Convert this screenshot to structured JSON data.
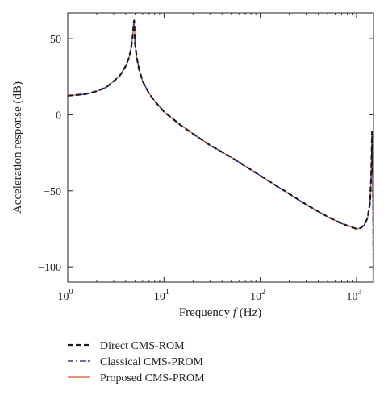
{
  "chart_data": {
    "type": "line",
    "title": "",
    "xlabel": "Frequency",
    "xlabel_var": "f",
    "xlabel_unit": "(Hz)",
    "ylabel": "Acceleration response (dB)",
    "xscale": "log",
    "xlim": [
      1,
      1500
    ],
    "ylim": [
      -110,
      67
    ],
    "grid": false,
    "legend_position": "below",
    "x_ticks": [
      {
        "base": "10",
        "exp": "0",
        "value": 1
      },
      {
        "base": "10",
        "exp": "1",
        "value": 10
      },
      {
        "base": "10",
        "exp": "2",
        "value": 100
      },
      {
        "base": "10",
        "exp": "3",
        "value": 1000
      }
    ],
    "y_ticks": [
      {
        "label": "50",
        "value": 50
      },
      {
        "label": "0",
        "value": 0
      },
      {
        "label": "−50",
        "value": -50
      },
      {
        "label": "−100",
        "value": -100
      }
    ],
    "series": [
      {
        "name": "Direct CMS-ROM",
        "color": "#1a1a1a",
        "dash": "dashed",
        "x": [
          1,
          1.5,
          2,
          2.5,
          3,
          3.5,
          4,
          4.3,
          4.5,
          4.7,
          4.8,
          4.85,
          4.9,
          4.95,
          5,
          5.2,
          5.5,
          6,
          7,
          8,
          10,
          15,
          20,
          30,
          50,
          100,
          200,
          300,
          500,
          700,
          900,
          1000,
          1100,
          1200,
          1300,
          1380,
          1420,
          1450,
          1470
        ],
        "y": [
          12.5,
          13.5,
          15.5,
          18,
          22,
          26,
          32,
          37,
          42,
          50,
          57,
          61,
          62,
          55,
          47,
          38,
          30,
          22,
          14,
          9,
          2,
          -7,
          -12.5,
          -20,
          -28,
          -40,
          -52,
          -59,
          -67,
          -71.5,
          -74,
          -75,
          -74.5,
          -72.5,
          -68,
          -58,
          -40,
          -11,
          -38
        ]
      },
      {
        "name": "Classical CMS-PROM",
        "color": "#3a3a9a",
        "dash": "dashdot",
        "x": [
          1,
          1.5,
          2,
          2.5,
          3,
          3.5,
          4,
          4.3,
          4.5,
          4.7,
          4.8,
          4.85,
          4.9,
          4.95,
          5,
          5.2,
          5.5,
          6,
          7,
          8,
          10,
          15,
          20,
          30,
          50,
          100,
          200,
          300,
          500,
          700,
          900,
          1000,
          1100,
          1200,
          1300,
          1380,
          1420,
          1450,
          1470,
          1490
        ],
        "y": [
          12.5,
          13.5,
          15.5,
          18,
          22,
          26,
          32,
          37,
          42,
          50,
          57,
          61,
          62,
          55,
          47,
          38,
          30,
          22,
          14,
          9,
          2,
          -7,
          -12.5,
          -20,
          -28,
          -40,
          -52,
          -59,
          -67,
          -71.5,
          -74,
          -75,
          -74.5,
          -72.5,
          -68,
          -58,
          -40,
          -11,
          -45,
          -110
        ]
      },
      {
        "name": "Proposed CMS-PROM",
        "color": "#d9532c",
        "dash": "solid",
        "x": [
          1,
          1.5,
          2,
          2.5,
          3,
          3.5,
          4,
          4.3,
          4.5,
          4.7,
          4.8,
          4.85,
          4.9,
          4.95,
          5,
          5.2,
          5.5,
          6,
          7,
          8,
          10,
          15,
          20,
          30,
          50,
          100,
          200,
          300,
          500,
          700,
          900,
          1000,
          1100,
          1200,
          1300,
          1380,
          1420,
          1450,
          1470,
          1480
        ],
        "y": [
          12.5,
          13.5,
          15.5,
          18,
          22,
          26,
          32,
          37,
          42,
          50,
          57,
          61,
          62,
          55,
          47,
          38,
          30,
          22,
          14,
          9,
          2,
          -7,
          -12.5,
          -20,
          -28,
          -40,
          -52,
          -59,
          -67,
          -71.5,
          -74,
          -75,
          -74.5,
          -72.5,
          -68,
          -58,
          -40,
          -11,
          -50,
          -72
        ]
      }
    ]
  }
}
